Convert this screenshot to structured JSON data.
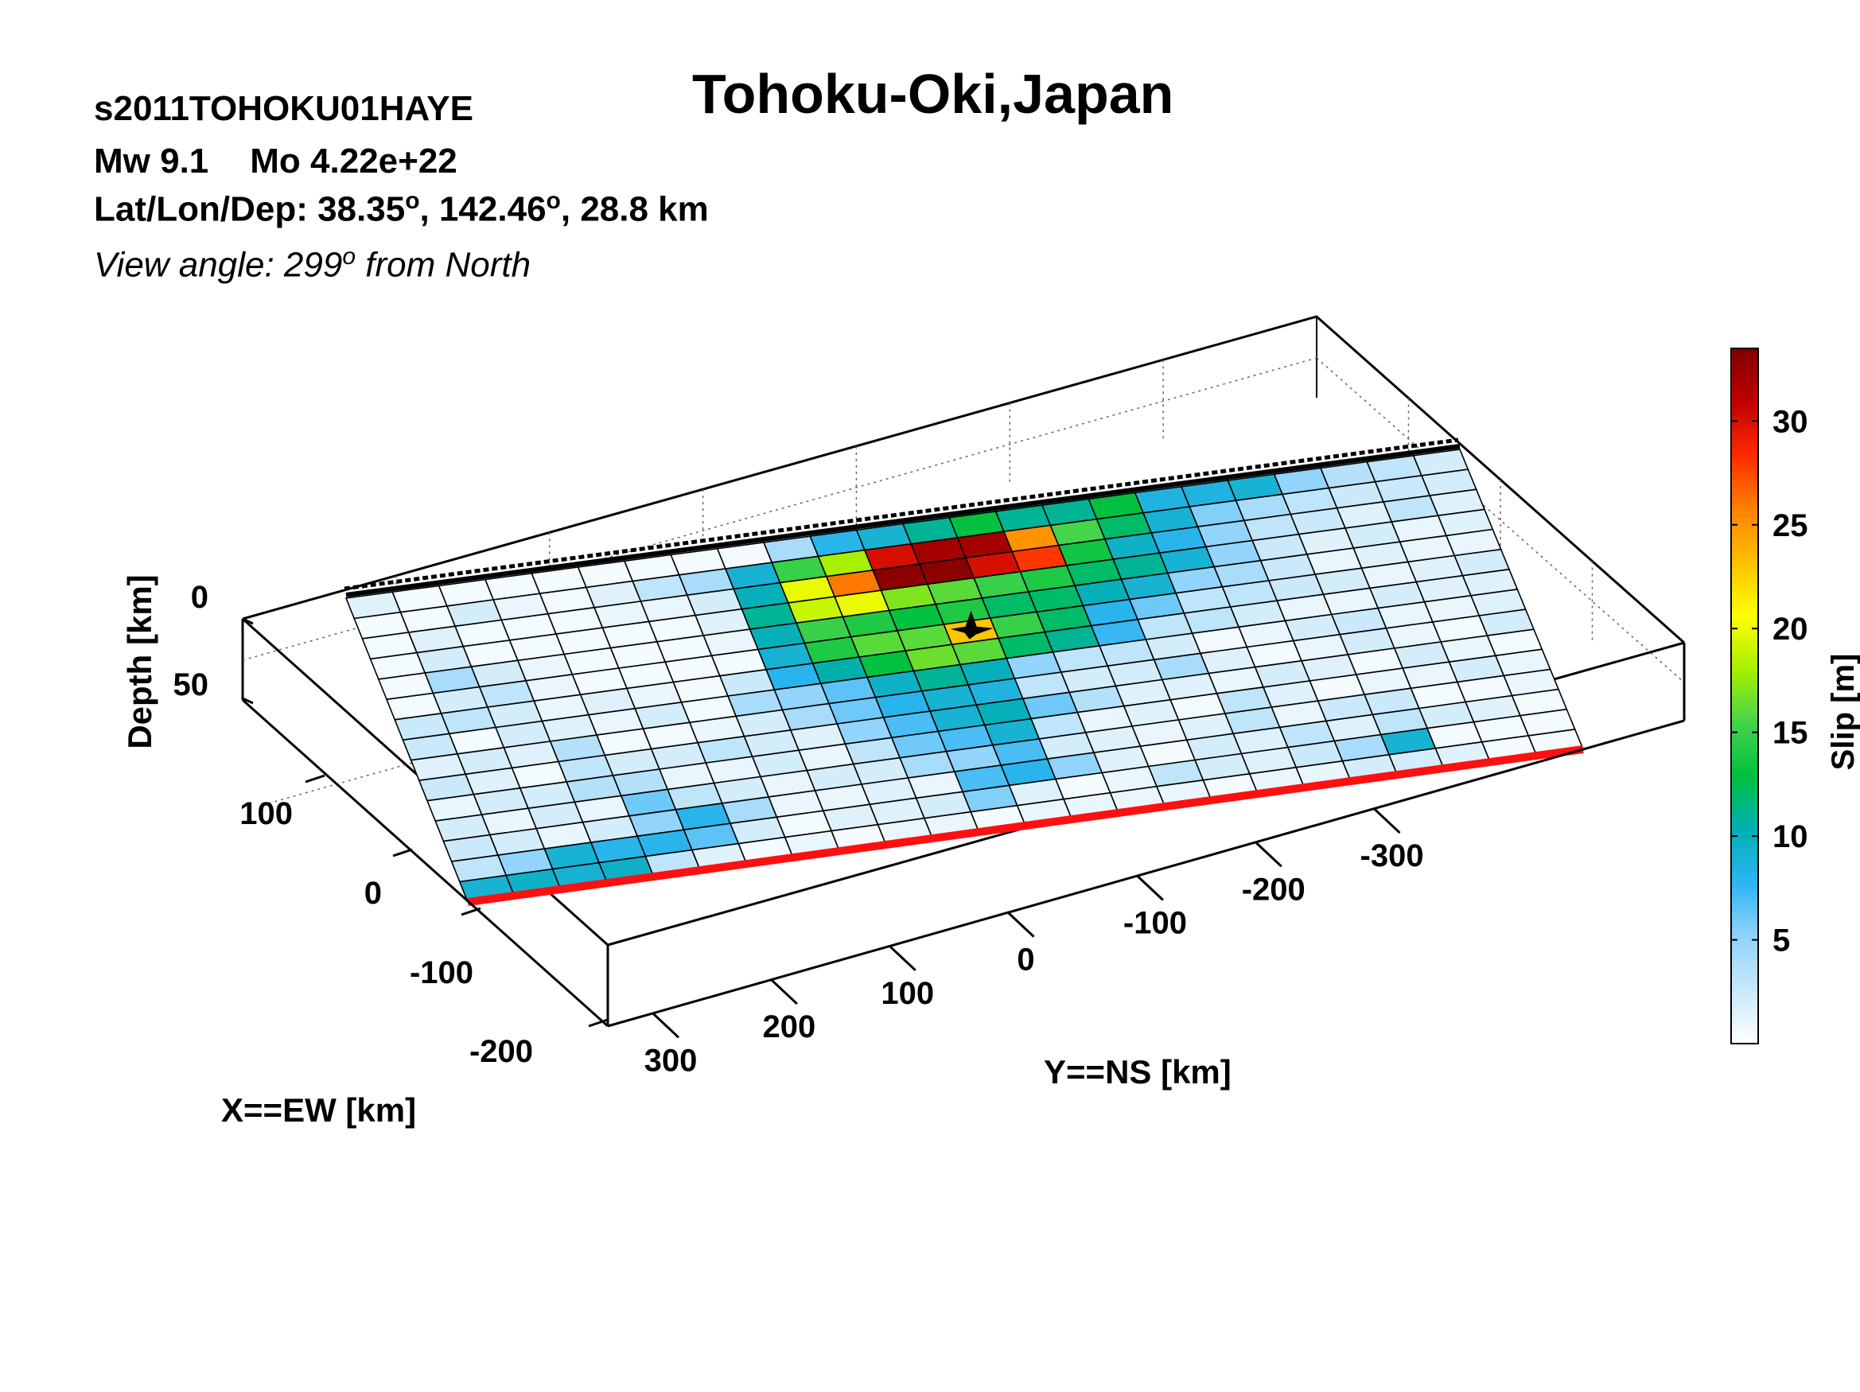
{
  "header": {
    "title": "Tohoku-Oki,Japan",
    "event_id": "s2011TOHOKU01HAYE",
    "mw_label": "Mw 9.1",
    "mo_label": "Mo 4.22e+22",
    "loc_prefix": "Lat/Lon/Dep: 38.35",
    "loc_deg": "o",
    "loc_mid": ", 142.46",
    "loc_suffix": ", 28.8 km",
    "view_prefix": "View angle: 299",
    "view_deg": "o",
    "view_suffix": " from North"
  },
  "chart_data": {
    "type": "heatmap",
    "title": "Tohoku-Oki,Japan",
    "xlabel": "X==EW [km]",
    "ylabel": "Y==NS [km]",
    "zlabel": "Depth [km]",
    "colorbar_label": "Slip [m]",
    "colorbar_ticks": [
      5,
      10,
      15,
      20,
      25,
      30
    ],
    "colorbar_range": [
      0,
      33.5
    ],
    "colormap": [
      "#ffffff",
      "#c8e8fa",
      "#8fd3fb",
      "#2fb4f2",
      "#00b0b4",
      "#00c040",
      "#44d44b",
      "#a8f000",
      "#ffff00",
      "#ffc000",
      "#ff8000",
      "#ff2a00",
      "#c00000",
      "#800000"
    ],
    "x_ticks": [
      -200,
      -100,
      0,
      100
    ],
    "y_ticks": [
      300,
      200,
      100,
      0,
      -100,
      -200,
      -300
    ],
    "z_ticks": [
      0,
      50
    ],
    "strike_columns": 24,
    "dip_rows": 15,
    "hypocenter_cell": [
      12,
      5
    ],
    "slip": [
      [
        1.5,
        0.5,
        0.5,
        0.5,
        0.5,
        0.5,
        0.5,
        0.5,
        0.5,
        4.0,
        8.0,
        9.0,
        11.0,
        13.0,
        11.0,
        11.0,
        13.0,
        8.5,
        8.5,
        9.0,
        5.0,
        3.5,
        3.0,
        2.0
      ],
      [
        0.5,
        0.5,
        2.0,
        1.0,
        0.5,
        1.5,
        3.0,
        4.0,
        9.0,
        15.0,
        18.0,
        30.0,
        32.0,
        32.0,
        25.0,
        15.5,
        12.0,
        9.0,
        5.5,
        4.0,
        3.0,
        2.5,
        2.5,
        2.0
      ],
      [
        0.5,
        1.5,
        0.5,
        0.5,
        0.5,
        1.0,
        1.0,
        2.0,
        10.0,
        20.0,
        26.0,
        33.0,
        33.0,
        30.0,
        28.0,
        13.5,
        9.5,
        8.0,
        5.0,
        3.0,
        2.5,
        1.5,
        3.0,
        1.5
      ],
      [
        0.5,
        2.0,
        0.5,
        0.5,
        0.5,
        0.5,
        0.5,
        1.5,
        11.0,
        19.0,
        20.0,
        17.0,
        16.0,
        15.0,
        14.0,
        12.0,
        11.0,
        9.0,
        5.0,
        2.5,
        1.5,
        2.0,
        1.0,
        1.5
      ],
      [
        0.5,
        4.0,
        2.0,
        1.0,
        0.5,
        0.5,
        0.5,
        1.0,
        10.0,
        15.0,
        14.0,
        13.0,
        14.0,
        12.0,
        12.0,
        10.0,
        9.0,
        5.0,
        4.0,
        2.5,
        1.0,
        1.5,
        1.0,
        1.0
      ],
      [
        0.5,
        2.0,
        3.0,
        1.0,
        0.5,
        0.5,
        0.5,
        0.5,
        9.0,
        14.0,
        16.0,
        16.0,
        23.0,
        15.0,
        12.0,
        8.0,
        6.0,
        3.0,
        3.0,
        2.5,
        2.0,
        1.0,
        1.5,
        2.0
      ],
      [
        2.5,
        3.0,
        2.0,
        1.0,
        1.5,
        1.0,
        0.5,
        2.5,
        8.0,
        10.5,
        13.0,
        16.5,
        16.0,
        12.0,
        11.0,
        7.5,
        3.0,
        3.0,
        2.0,
        1.0,
        1.0,
        2.0,
        1.5,
        1.5
      ],
      [
        2.5,
        0.5,
        2.0,
        1.5,
        1.0,
        2.0,
        0.5,
        4.0,
        5.0,
        6.5,
        9.5,
        11.0,
        10.0,
        5.0,
        3.0,
        3.0,
        2.0,
        0.5,
        1.0,
        2.0,
        2.5,
        1.0,
        1.0,
        1.5
      ],
      [
        1.5,
        2.0,
        1.5,
        3.5,
        0.5,
        0.5,
        1.0,
        2.0,
        4.0,
        6.0,
        8.0,
        9.0,
        8.5,
        3.0,
        2.0,
        2.0,
        4.0,
        1.5,
        0.5,
        1.0,
        2.0,
        1.0,
        0.5,
        2.0
      ],
      [
        2.5,
        1.5,
        0.5,
        3.0,
        2.0,
        2.0,
        3.0,
        2.0,
        1.5,
        5.0,
        7.0,
        9.0,
        10.0,
        6.0,
        3.5,
        1.5,
        1.5,
        1.0,
        2.0,
        1.5,
        0.5,
        2.0,
        1.0,
        0.5
      ],
      [
        1.0,
        2.0,
        2.0,
        3.5,
        3.5,
        1.0,
        1.0,
        2.0,
        1.0,
        3.0,
        6.0,
        7.0,
        9.0,
        3.0,
        1.0,
        1.5,
        0.5,
        3.0,
        1.5,
        0.5,
        1.0,
        1.0,
        2.0,
        1.0
      ],
      [
        2.0,
        1.0,
        2.0,
        1.0,
        6.0,
        3.0,
        2.0,
        1.0,
        2.0,
        2.0,
        4.0,
        5.0,
        7.0,
        2.0,
        1.5,
        1.0,
        1.5,
        3.0,
        1.0,
        2.5,
        2.5,
        0.5,
        0.5,
        1.0
      ],
      [
        2.5,
        2.0,
        1.0,
        2.0,
        5.0,
        8.0,
        4.0,
        1.0,
        1.0,
        1.5,
        1.0,
        7.0,
        8.0,
        5.0,
        1.5,
        0.5,
        2.0,
        1.5,
        3.0,
        1.5,
        3.0,
        2.0,
        1.5,
        0.5
      ],
      [
        3.0,
        5.0,
        9.0,
        8.0,
        8.0,
        6.5,
        2.0,
        0.5,
        1.5,
        1.5,
        2.0,
        5.5,
        1.5,
        0.5,
        1.0,
        3.0,
        2.0,
        1.5,
        2.5,
        4.0,
        9.0,
        0.5,
        0.5,
        0.5
      ],
      [
        9.0,
        9.5,
        9.0,
        9.5,
        3.0,
        1.5,
        0.5,
        1.0,
        0.5,
        1.0,
        1.0,
        0.5,
        1.0,
        1.0,
        1.0,
        1.0,
        0.5,
        1.0,
        1.0,
        2.0,
        2.0,
        1.5,
        0.5,
        0.5
      ]
    ]
  }
}
